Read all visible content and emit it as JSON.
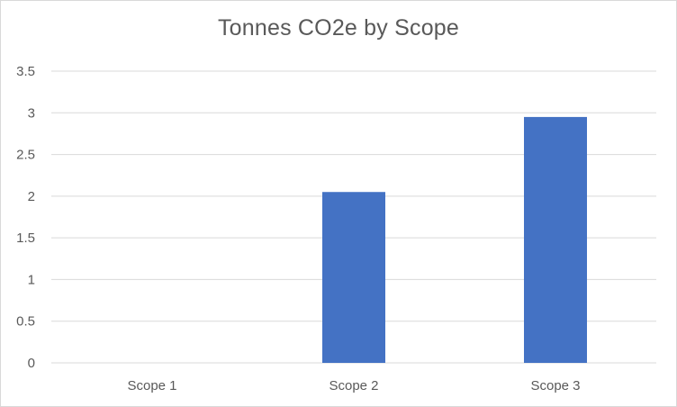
{
  "chart_data": {
    "type": "bar",
    "title": "Tonnes CO2e by Scope",
    "xlabel": "",
    "ylabel": "",
    "categories": [
      "Scope 1",
      "Scope 2",
      "Scope 3"
    ],
    "values": [
      0,
      2.05,
      2.95
    ],
    "ylim": [
      0,
      3.5
    ],
    "yticks": [
      0,
      0.5,
      1,
      1.5,
      2,
      2.5,
      3,
      3.5
    ],
    "ytick_labels": [
      "0",
      "0.5",
      "1",
      "1.5",
      "2",
      "2.5",
      "3",
      "3.5"
    ],
    "grid": true,
    "legend": "none",
    "colors": {
      "bar": "#4472c4",
      "grid": "#d9d9d9",
      "text": "#595959"
    }
  }
}
